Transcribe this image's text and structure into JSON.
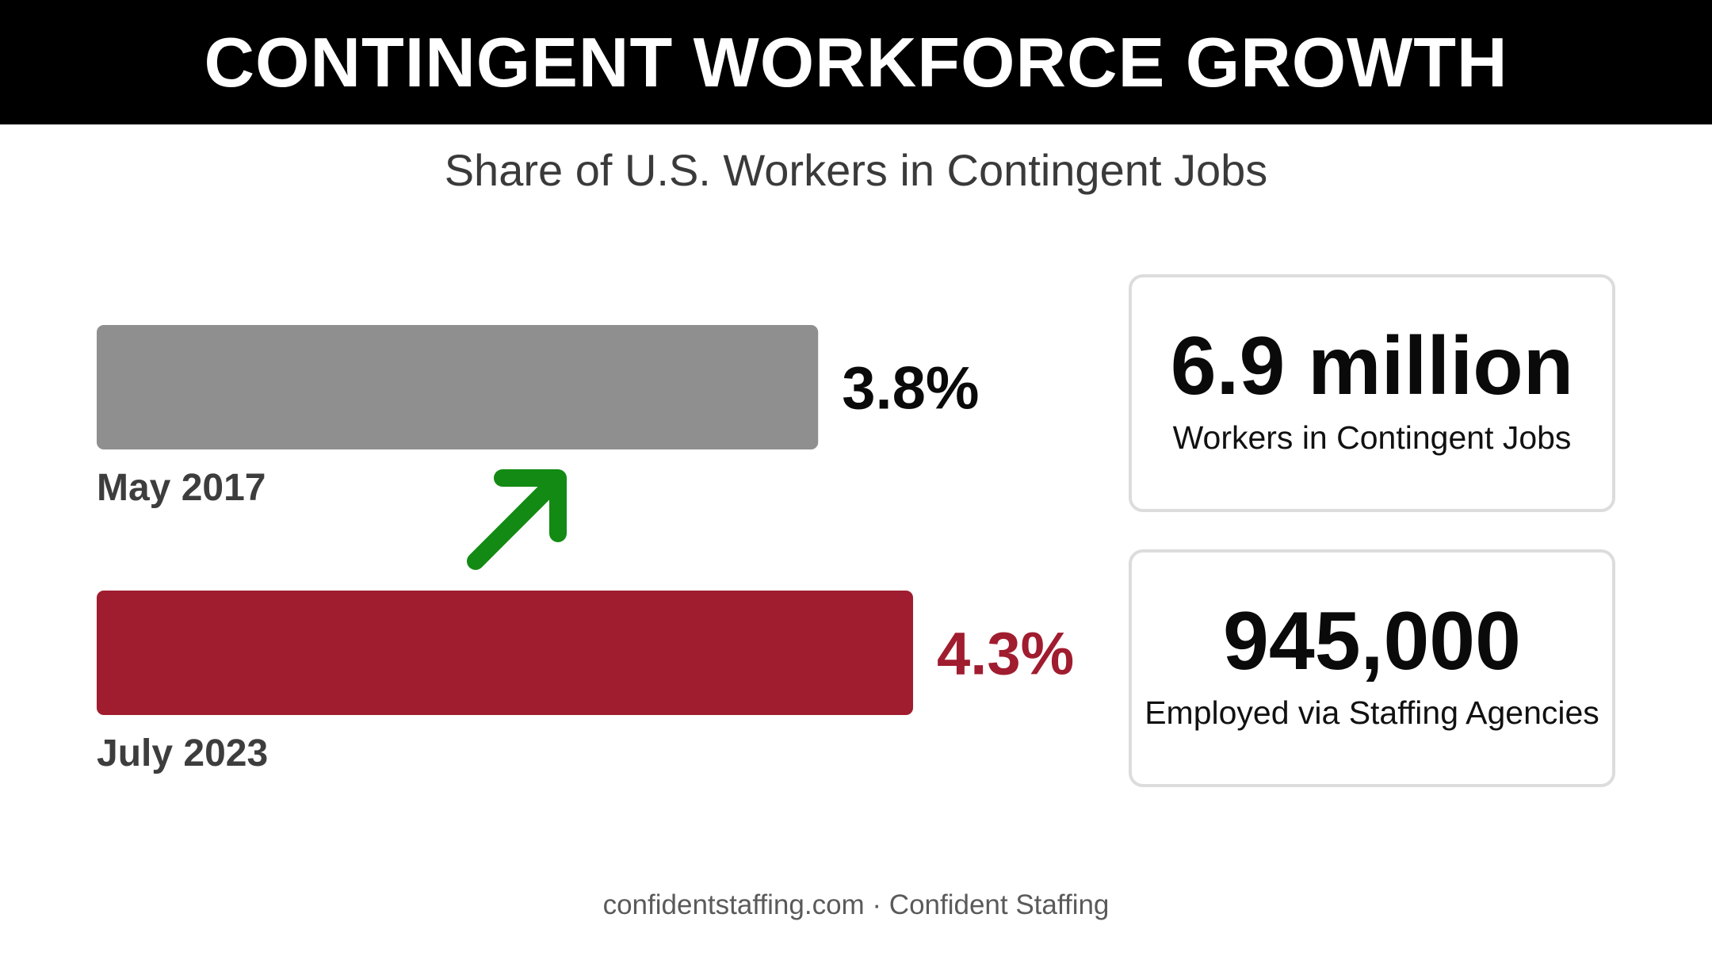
{
  "header": {
    "title": "CONTINGENT WORKFORCE GROWTH"
  },
  "chart_data": {
    "type": "bar",
    "title": "CONTINGENT WORKFORCE GROWTH",
    "subtitle": "Share of U.S. Workers in Contingent Jobs",
    "orientation": "horizontal",
    "categories": [
      "May 2017",
      "July 2023"
    ],
    "values": [
      3.8,
      4.3
    ],
    "value_labels": [
      "3.8%",
      "4.3%"
    ],
    "unit": "%",
    "xlim": [
      0,
      4.3
    ],
    "colors": [
      "#8f8f8f",
      "#a01c2f"
    ],
    "label_colors": [
      "#0a0a0a",
      "#a01c2f"
    ],
    "annotation": "green-up-arrow",
    "annotation_color": "#138a13",
    "grid": false,
    "legend": "none"
  },
  "stats": [
    {
      "value": "6.9 million",
      "label": "Workers in Contingent Jobs"
    },
    {
      "value": "945,000",
      "label": "Employed via Staffing Agencies"
    }
  ],
  "footer": {
    "text": "confidentstaffing.com · Confident Staffing"
  }
}
